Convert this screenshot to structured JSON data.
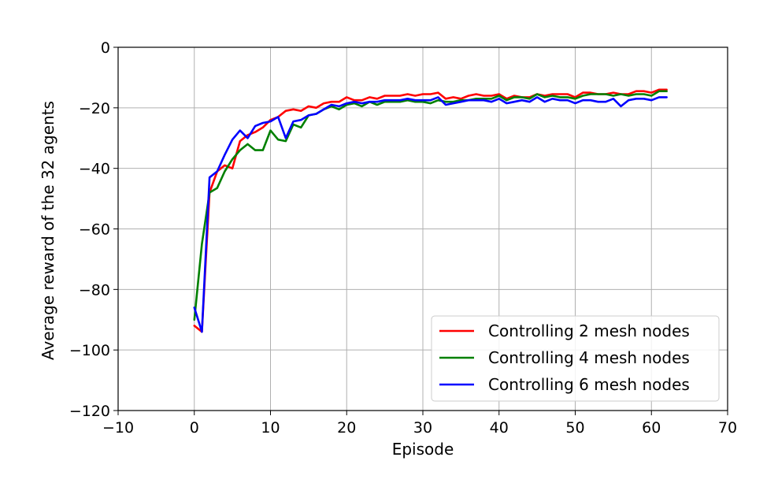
{
  "chart_data": {
    "type": "line",
    "title": "",
    "xlabel": "Episode",
    "ylabel": "Average reward of the 32 agents",
    "xlim": [
      -10,
      70
    ],
    "ylim": [
      -120,
      0
    ],
    "xticks": [
      "−10",
      "0",
      "10",
      "20",
      "30",
      "40",
      "50",
      "60",
      "70"
    ],
    "yticks": [
      "0",
      "−20",
      "−40",
      "−60",
      "−80",
      "−100",
      "−120"
    ],
    "grid": true,
    "legend_position": "lower-right",
    "x": [
      0,
      1,
      2,
      3,
      4,
      5,
      6,
      7,
      8,
      9,
      10,
      11,
      12,
      13,
      14,
      15,
      16,
      17,
      18,
      19,
      20,
      21,
      22,
      23,
      24,
      25,
      26,
      27,
      28,
      29,
      30,
      31,
      32,
      33,
      34,
      35,
      36,
      37,
      38,
      39,
      40,
      41,
      42,
      43,
      44,
      45,
      46,
      47,
      48,
      49,
      50,
      51,
      52,
      53,
      54,
      55,
      56,
      57,
      58,
      59,
      60,
      61,
      62
    ],
    "series": [
      {
        "name": "Controlling 2 mesh nodes",
        "color": "#ff0000",
        "values": [
          -92,
          -94,
          -48,
          -41,
          -39,
          -40,
          -31,
          -29,
          -28,
          -26.5,
          -24,
          -23,
          -21,
          -20.5,
          -21,
          -19.5,
          -20,
          -18.5,
          -18,
          -18,
          -16.5,
          -17.5,
          -17.5,
          -16.5,
          -17,
          -16,
          -16,
          -16,
          -15.5,
          -16,
          -15.5,
          -15.5,
          -15,
          -17,
          -16.5,
          -17,
          -16,
          -15.5,
          -16,
          -16,
          -15.5,
          -17,
          -16,
          -16.5,
          -16.5,
          -15.5,
          -16,
          -15.5,
          -15.5,
          -15.5,
          -16.5,
          -15,
          -15,
          -15.5,
          -15.5,
          -15,
          -15.5,
          -15.5,
          -14.5,
          -14.5,
          -15,
          -14,
          -14
        ]
      },
      {
        "name": "Controlling 4 mesh nodes",
        "color": "#008000",
        "values": [
          -90,
          -65,
          -48,
          -46.5,
          -41,
          -37,
          -34,
          -32,
          -34,
          -34,
          -27.5,
          -30.5,
          -31,
          -25.5,
          -26.5,
          -22.5,
          -22,
          -20.5,
          -19.5,
          -20.5,
          -19,
          -18.5,
          -19.5,
          -18,
          -19,
          -18,
          -18,
          -18,
          -17.5,
          -18,
          -18,
          -18.5,
          -17.5,
          -18,
          -18,
          -17.5,
          -17.5,
          -17,
          -17,
          -17,
          -16,
          -17.5,
          -16.5,
          -16.5,
          -17,
          -15.5,
          -16.5,
          -16,
          -16.5,
          -16.5,
          -17,
          -16,
          -15.5,
          -15.5,
          -15.5,
          -16,
          -15.5,
          -16,
          -15.5,
          -15.5,
          -16,
          -14.5,
          -14.5
        ]
      },
      {
        "name": "Controlling 6 mesh nodes",
        "color": "#0000ff",
        "values": [
          -86,
          -94,
          -43,
          -41,
          -35.5,
          -30.5,
          -27.5,
          -30,
          -26,
          -25,
          -24.5,
          -23,
          -30,
          -24.5,
          -24,
          -22.5,
          -22,
          -20.5,
          -19,
          -19.5,
          -18.5,
          -18,
          -18.5,
          -18,
          -18,
          -17.5,
          -17.5,
          -17.5,
          -17,
          -17.5,
          -17.5,
          -17.5,
          -16.5,
          -19,
          -18.5,
          -18,
          -17.5,
          -17.5,
          -17.5,
          -18,
          -17,
          -18.5,
          -18,
          -17.5,
          -18,
          -16.5,
          -18,
          -17,
          -17.5,
          -17.5,
          -18.5,
          -17.5,
          -17.5,
          -18,
          -18,
          -17,
          -19.5,
          -17.5,
          -17,
          -17,
          -17.5,
          -16.5,
          -16.5
        ]
      }
    ]
  }
}
